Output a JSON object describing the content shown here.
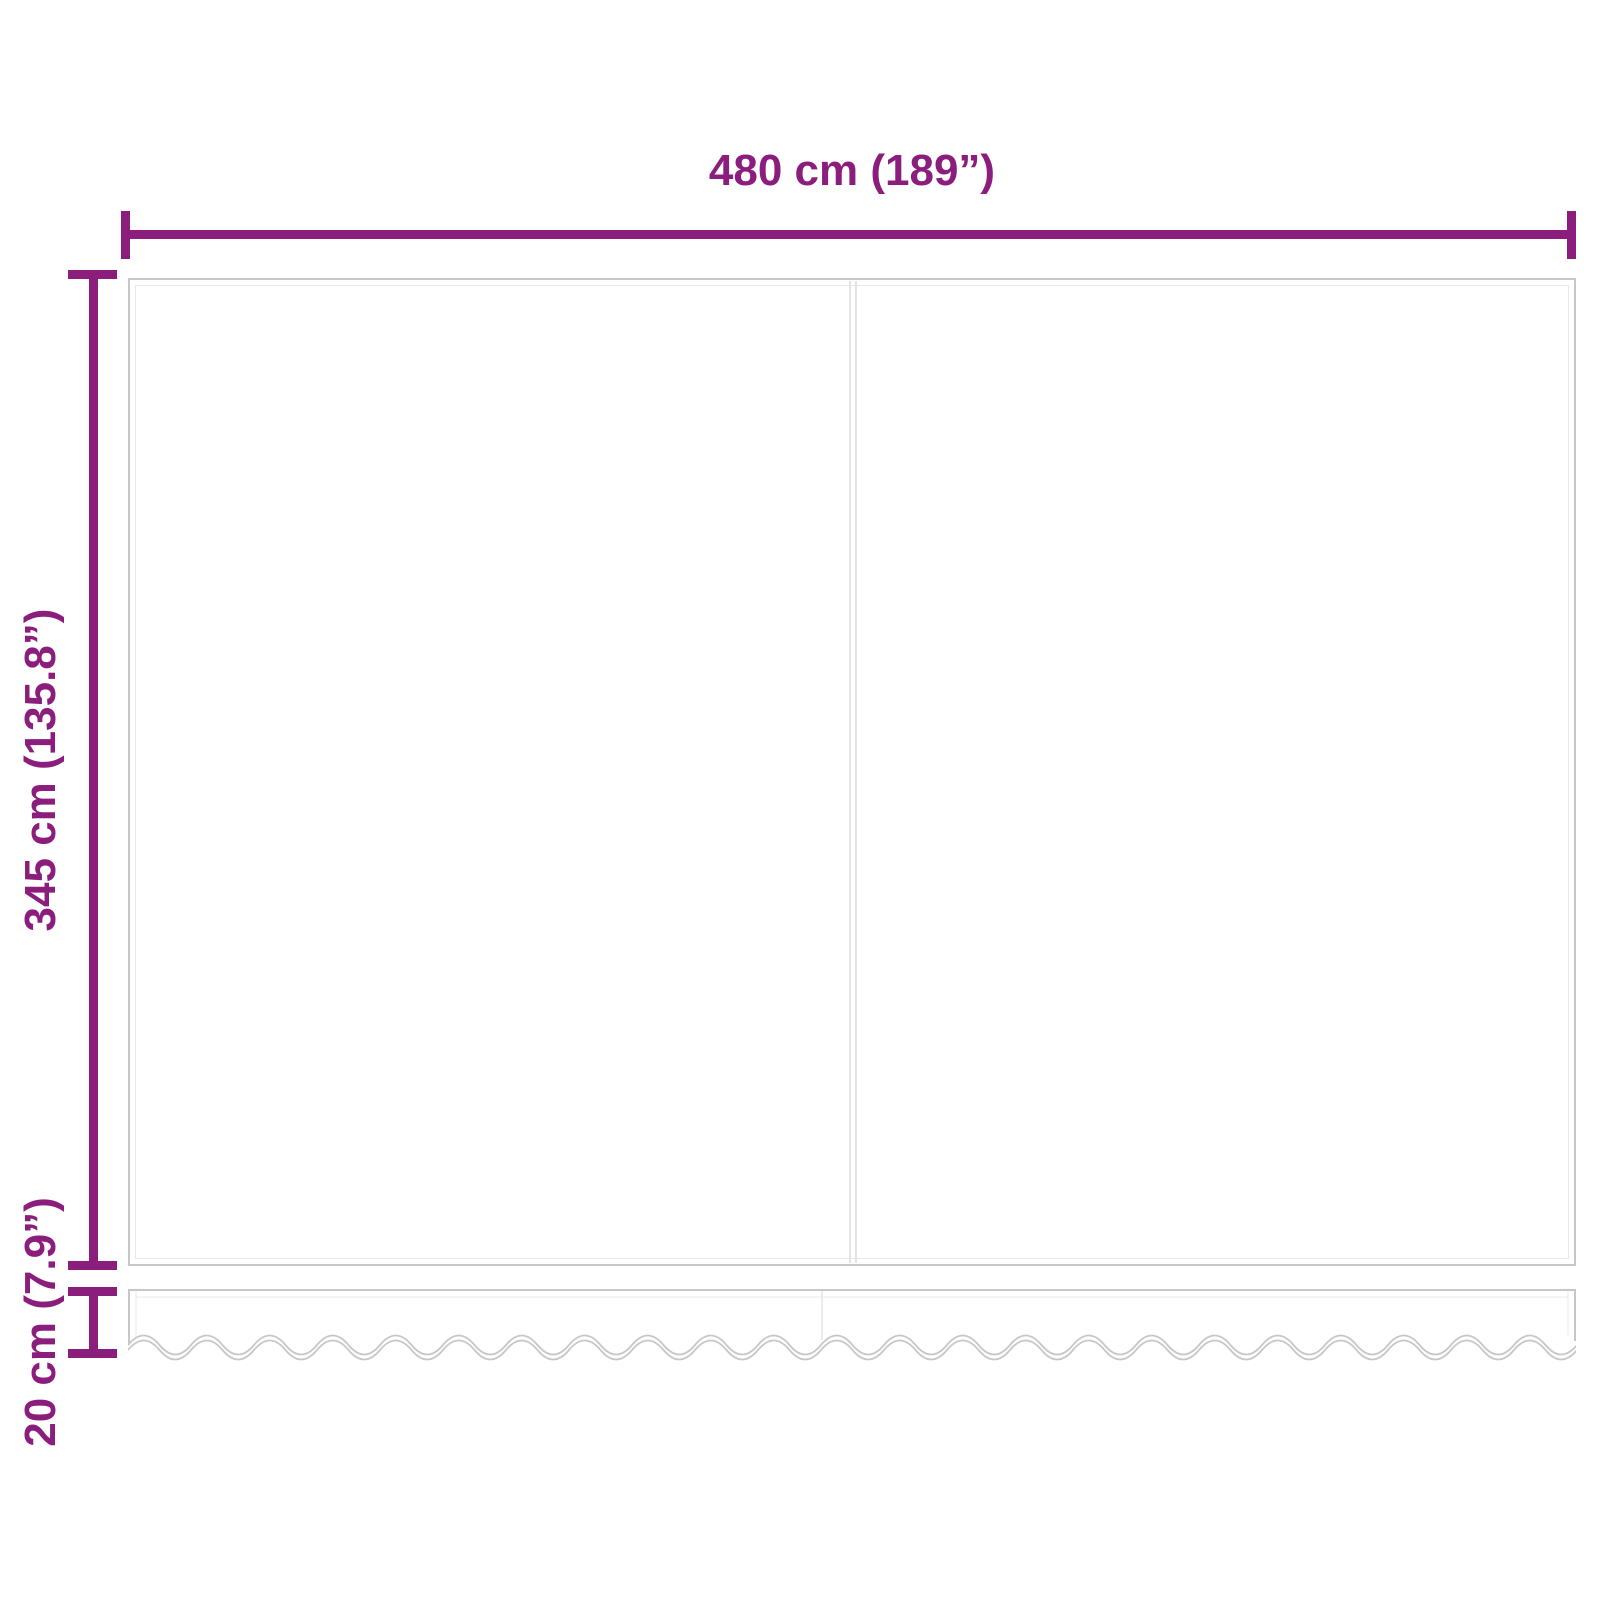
{
  "diagram": {
    "width_label": "480 cm (189”)",
    "height_label": "345 cm (135.8”)",
    "valance_label": "20 cm (7.9”)"
  },
  "colors": {
    "dimension": "#8B1E7C",
    "outline": "#C7C7C7",
    "hairline": "#E9E9E9",
    "seam": "#E3E3E3",
    "background": "#FFFFFF"
  }
}
